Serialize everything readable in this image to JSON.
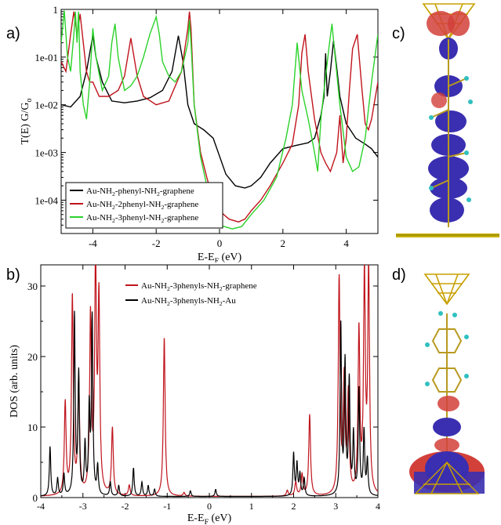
{
  "panel_labels": {
    "a": "a)",
    "b": "b)",
    "c": "c)",
    "d": "d)"
  },
  "colors": {
    "black": "#000000",
    "red": "#c0141c",
    "green": "#2bd22b",
    "gold": "#c8a000",
    "blue_iso": "#3a2fb0",
    "red_iso": "#d2403a"
  },
  "chart_data": [
    {
      "type": "line",
      "panel": "a",
      "ylabel": "T(E) G/G",
      "ylabel_sub": "o",
      "xlabel": "E-E",
      "xlabel_sub": "F",
      "xlabel_unit": " (eV)",
      "log_y": true,
      "xlim": [
        -5,
        5
      ],
      "ylim": [
        2e-05,
        1.0
      ],
      "x_ticks": [
        -4,
        -2,
        0,
        2,
        4
      ],
      "y_ticks": [
        {
          "value": 1,
          "label": "1"
        },
        {
          "value": 0.1,
          "label": "1e-01"
        },
        {
          "value": 0.01,
          "label": "1e-02"
        },
        {
          "value": 0.001,
          "label": "1e-03"
        },
        {
          "value": 0.0001,
          "label": "1e-04"
        }
      ],
      "legend_position": "bottom-left",
      "series": [
        {
          "name_parts": [
            "Au-NH",
            "2",
            "-phenyl-NH",
            "2",
            "-graphene"
          ],
          "color": "#000000",
          "x": [
            -5,
            -4.7,
            -4.4,
            -4.2,
            -4.1,
            -4.0,
            -3.9,
            -3.7,
            -3.4,
            -3.0,
            -2.6,
            -2.2,
            -1.8,
            -1.5,
            -1.3,
            -1.15,
            -1.0,
            -0.8,
            -0.5,
            -0.2,
            0.2,
            0.5,
            0.8,
            1.0,
            1.3,
            1.6,
            2.0,
            2.4,
            2.8,
            3.0,
            3.2,
            3.3,
            3.35,
            3.4,
            3.5,
            3.6,
            3.7,
            3.8,
            4.0,
            4.3,
            4.6,
            4.8,
            5.0
          ],
          "y": [
            0.01,
            0.009,
            0.015,
            0.05,
            0.12,
            0.28,
            0.1,
            0.03,
            0.012,
            0.011,
            0.012,
            0.014,
            0.02,
            0.05,
            0.28,
            0.08,
            0.01,
            0.004,
            0.003,
            0.002,
            0.00035,
            0.0002,
            0.00018,
            0.0002,
            0.0003,
            0.0006,
            0.0012,
            0.0014,
            0.0016,
            0.002,
            0.006,
            0.015,
            0.12,
            0.015,
            0.05,
            0.22,
            0.06,
            0.015,
            0.004,
            0.002,
            0.0015,
            0.0012,
            0.0008
          ]
        },
        {
          "name_parts": [
            "Au-NH",
            "2",
            "-2phenyl-NH",
            "2",
            "-graphene"
          ],
          "color": "#c0141c",
          "x": [
            -5,
            -4.85,
            -4.7,
            -4.6,
            -4.5,
            -4.4,
            -4.2,
            -4.1,
            -4.0,
            -3.8,
            -3.5,
            -3.2,
            -3.0,
            -2.8,
            -2.6,
            -2.4,
            -2.0,
            -1.6,
            -1.2,
            -1.0,
            -0.95,
            -0.9,
            -0.8,
            -0.6,
            -0.4,
            -0.2,
            0.0,
            0.3,
            0.6,
            0.8,
            1.0,
            1.3,
            1.6,
            2.0,
            2.3,
            2.5,
            2.6,
            2.7,
            2.8,
            3.0,
            3.2,
            3.35,
            3.5,
            3.7,
            3.8,
            3.9,
            4.0,
            4.1,
            4.2,
            4.35,
            4.5,
            4.6,
            4.7,
            4.8,
            5.0
          ],
          "y": [
            0.08,
            0.05,
            0.3,
            0.9,
            0.3,
            0.8,
            0.05,
            0.03,
            0.03,
            0.015,
            0.015,
            0.02,
            0.04,
            0.25,
            0.04,
            0.015,
            0.01,
            0.012,
            0.05,
            0.4,
            0.9,
            0.4,
            0.01,
            0.001,
            0.0003,
            0.0001,
            6e-05,
            4e-05,
            3.5e-05,
            4e-05,
            6e-05,
            0.0001,
            0.0002,
            0.0006,
            0.0015,
            0.01,
            0.12,
            0.3,
            0.05,
            0.005,
            0.001,
            0.0006,
            0.0004,
            0.001,
            0.006,
            0.0006,
            0.002,
            0.02,
            0.15,
            0.3,
            0.02,
            0.004,
            0.003,
            0.005,
            0.03
          ]
        },
        {
          "name_parts": [
            "Au-NH",
            "2",
            "-3phenyl-NH",
            "2",
            "-graphene"
          ],
          "color": "#2bd22b",
          "x": [
            -5,
            -4.9,
            -4.8,
            -4.7,
            -4.6,
            -4.55,
            -4.5,
            -4.45,
            -4.4,
            -4.3,
            -4.2,
            -4.1,
            -4.0,
            -3.9,
            -3.7,
            -3.5,
            -3.4,
            -3.3,
            -3.2,
            -3.0,
            -2.8,
            -2.6,
            -2.4,
            -2.2,
            -2.0,
            -1.9,
            -1.8,
            -1.6,
            -1.4,
            -1.2,
            -1.0,
            -0.95,
            -0.9,
            -0.8,
            -0.6,
            -0.3,
            0.0,
            0.4,
            0.7,
            1.0,
            1.4,
            1.8,
            2.1,
            2.3,
            2.45,
            2.6,
            2.8,
            3.0,
            3.1,
            3.2,
            3.3,
            3.45,
            3.55,
            3.65,
            3.8,
            4.0,
            4.2,
            4.4,
            4.6,
            4.8,
            5.0
          ],
          "y": [
            0.2,
            0.95,
            0.1,
            0.05,
            0.3,
            0.9,
            0.2,
            0.9,
            0.05,
            0.01,
            0.005,
            0.03,
            0.4,
            0.1,
            0.02,
            0.04,
            0.2,
            0.5,
            0.1,
            0.02,
            0.025,
            0.04,
            0.1,
            0.3,
            0.7,
            0.3,
            0.08,
            0.04,
            0.03,
            0.05,
            0.2,
            0.6,
            0.2,
            0.01,
            0.0008,
            0.0001,
            3e-05,
            2.5e-05,
            2.8e-05,
            5e-05,
            0.0001,
            0.0003,
            0.002,
            0.01,
            0.2,
            0.02,
            0.005,
            0.001,
            0.0004,
            0.005,
            0.02,
            0.15,
            0.5,
            0.1,
            0.01,
            0.0008,
            0.0004,
            0.0005,
            0.002,
            0.03,
            0.3
          ]
        }
      ]
    },
    {
      "type": "line",
      "panel": "b",
      "ylabel": "DOS (arb. units)",
      "xlabel": "E-E",
      "xlabel_sub": "F",
      "xlabel_unit": " (eV)",
      "xlim": [
        -4,
        4
      ],
      "ylim": [
        0,
        33
      ],
      "x_ticks": [
        -4,
        -3,
        -2,
        -1,
        0,
        1,
        2,
        3,
        4
      ],
      "y_ticks": [
        0,
        10,
        20,
        30
      ],
      "legend_position": "top-center",
      "series": [
        {
          "name_parts": [
            "Au-NH",
            "2",
            "-3phenyls-NH",
            "2",
            "-graphene"
          ],
          "color": "#c0141c",
          "peaks": [
            [
              -3.42,
              13
            ],
            [
              -3.25,
              28
            ],
            [
              -3.1,
              16
            ],
            [
              -2.82,
              25
            ],
            [
              -2.7,
              32
            ],
            [
              -2.62,
              27
            ],
            [
              -2.3,
              9.5
            ],
            [
              -1.9,
              1.5
            ],
            [
              -1.07,
              22.5
            ],
            [
              -0.6,
              0.5
            ],
            [
              1.85,
              0.8
            ],
            [
              2.05,
              2
            ],
            [
              2.2,
              3
            ],
            [
              2.38,
              11.5
            ],
            [
              3.08,
              30.5
            ],
            [
              3.2,
              16
            ],
            [
              3.3,
              14
            ],
            [
              3.55,
              23
            ],
            [
              3.68,
              31
            ],
            [
              3.78,
              31.5
            ]
          ],
          "width": 0.025
        },
        {
          "name_parts": [
            "Au-NH",
            "2",
            "-3phenyls-NH",
            "2",
            "-Au"
          ],
          "color": "#000000",
          "peaks": [
            [
              -3.78,
              7
            ],
            [
              -3.6,
              2.5
            ],
            [
              -3.45,
              3
            ],
            [
              -3.2,
              25.5
            ],
            [
              -3.1,
              17
            ],
            [
              -2.95,
              7
            ],
            [
              -2.85,
              12
            ],
            [
              -2.78,
              25
            ],
            [
              -2.65,
              4
            ],
            [
              -2.35,
              2
            ],
            [
              -2.15,
              1.5
            ],
            [
              -1.8,
              4
            ],
            [
              -1.6,
              2
            ],
            [
              -1.45,
              1.5
            ],
            [
              -1.3,
              1
            ],
            [
              -0.45,
              0.8
            ],
            [
              0.15,
              1
            ],
            [
              2.0,
              6
            ],
            [
              2.08,
              4.5
            ],
            [
              2.15,
              3
            ],
            [
              2.25,
              2.5
            ],
            [
              3.12,
              24
            ],
            [
              3.22,
              18.5
            ],
            [
              3.32,
              16
            ],
            [
              3.42,
              8.5
            ],
            [
              3.55,
              15
            ],
            [
              3.67,
              9
            ],
            [
              3.75,
              5
            ]
          ],
          "width": 0.02
        }
      ]
    }
  ]
}
